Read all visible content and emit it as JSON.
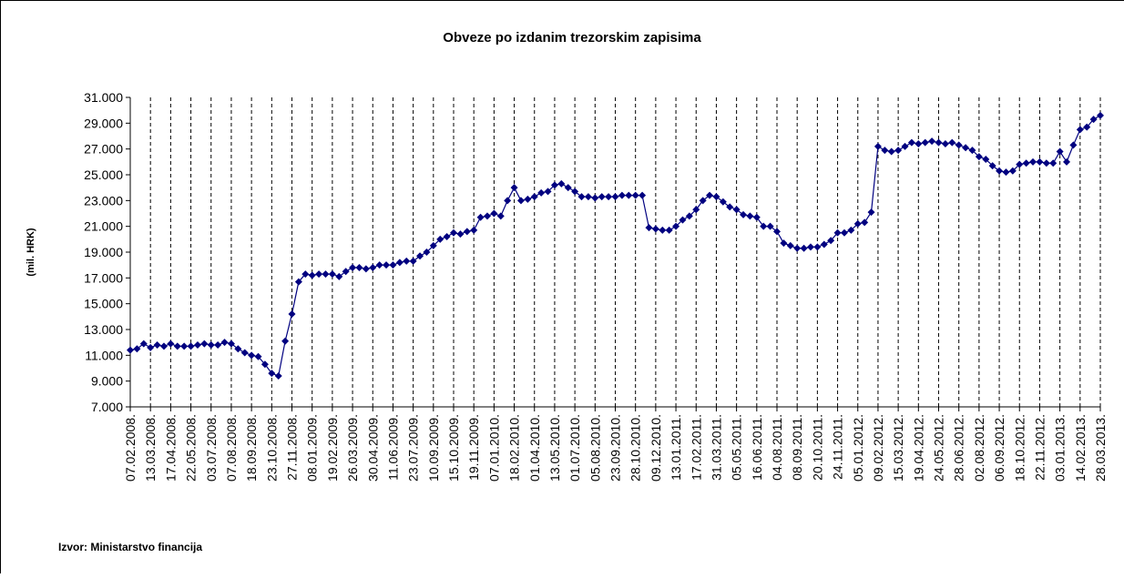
{
  "chart_data": {
    "type": "line",
    "title": "Obveze po izdanim trezorskim zapisima",
    "y_label": "(mil. HRK)",
    "source": "Izvor: Ministarstvo financija",
    "color": "#000080",
    "grid": "x-dashed",
    "categories": [
      "07.02.2008.",
      null,
      null,
      "13.03.2008.",
      null,
      null,
      "17.04.2008.",
      null,
      null,
      "22.05.2008.",
      null,
      null,
      "03.07.2008.",
      null,
      null,
      "07.08.2008.",
      null,
      null,
      "18.09.2008.",
      null,
      null,
      "23.10.2008.",
      null,
      null,
      "27.11.2008.",
      null,
      null,
      "08.01.2009.",
      null,
      null,
      "19.02.2009.",
      null,
      null,
      "26.03.2009.",
      null,
      null,
      "30.04.2009.",
      null,
      null,
      "11.06.2009.",
      null,
      null,
      "23.07.2009.",
      null,
      null,
      "10.09.2009.",
      null,
      null,
      "15.10.2009.",
      null,
      null,
      "19.11.2009.",
      null,
      null,
      "07.01.2010.",
      null,
      null,
      "18.02.2010.",
      null,
      null,
      "01.04.2010.",
      null,
      null,
      "13.05.2010.",
      null,
      null,
      "01.07.2010.",
      null,
      null,
      "05.08.2010.",
      null,
      null,
      "23.09.2010.",
      null,
      null,
      "28.10.2010.",
      null,
      null,
      "09.12.2010.",
      null,
      null,
      "13.01.2011.",
      null,
      null,
      "17.02.2011.",
      null,
      null,
      "31.03.2011.",
      null,
      null,
      "05.05.2011.",
      null,
      null,
      "16.06.2011.",
      null,
      null,
      "04.08.2011.",
      null,
      null,
      "08.09.2011.",
      null,
      null,
      "20.10.2011.",
      null,
      null,
      "24.11.2011.",
      null,
      null,
      "05.01.2012.",
      null,
      null,
      "09.02.2012.",
      null,
      null,
      "15.03.2012.",
      null,
      null,
      "19.04.2012.",
      null,
      null,
      "24.05.2012.",
      null,
      null,
      "28.06.2012.",
      null,
      null,
      "02.08.2012.",
      null,
      null,
      "06.09.2012.",
      null,
      null,
      "18.10.2012.",
      null,
      null,
      "22.11.2012.",
      null,
      null,
      "03.01.2013.",
      null,
      null,
      "14.02.2013.",
      null,
      null,
      "28.03.2013."
    ],
    "values": [
      11400,
      11500,
      11900,
      11600,
      11800,
      11700,
      11900,
      11700,
      11700,
      11700,
      11800,
      11900,
      11800,
      11800,
      12000,
      11900,
      11500,
      11200,
      11000,
      10900,
      10300,
      9600,
      9400,
      12100,
      14200,
      16700,
      17300,
      17200,
      17300,
      17300,
      17300,
      17100,
      17500,
      17800,
      17800,
      17700,
      17800,
      18000,
      18000,
      18000,
      18200,
      18300,
      18300,
      18700,
      19000,
      19500,
      20000,
      20200,
      20500,
      20400,
      20600,
      20700,
      21700,
      21800,
      22000,
      21800,
      23000,
      24000,
      23000,
      23100,
      23300,
      23600,
      23700,
      24200,
      24300,
      24000,
      23700,
      23300,
      23300,
      23200,
      23300,
      23300,
      23300,
      23400,
      23400,
      23400,
      23400,
      20900,
      20800,
      20700,
      20700,
      21000,
      21500,
      21800,
      22300,
      23000,
      23400,
      23300,
      22900,
      22500,
      22300,
      21900,
      21800,
      21700,
      21000,
      21000,
      20600,
      19700,
      19500,
      19300,
      19300,
      19400,
      19400,
      19600,
      19900,
      20500,
      20500,
      20700,
      21200,
      21300,
      22100,
      27200,
      26900,
      26800,
      26900,
      27200,
      27500,
      27400,
      27500,
      27600,
      27500,
      27400,
      27500,
      27300,
      27100,
      26900,
      26400,
      26200,
      25700,
      25300,
      25200,
      25300,
      25800,
      25900,
      26000,
      26000,
      25900,
      25900,
      26800,
      26000,
      27300,
      28500,
      28700,
      29300,
      29600
    ],
    "ylim": [
      7000,
      31000
    ],
    "yticks": [
      {
        "value": 7000,
        "label": "7.000"
      },
      {
        "value": 9000,
        "label": "9.000"
      },
      {
        "value": 11000,
        "label": "11.000"
      },
      {
        "value": 13000,
        "label": "13.000"
      },
      {
        "value": 15000,
        "label": "15.000"
      },
      {
        "value": 17000,
        "label": "17.000"
      },
      {
        "value": 19000,
        "label": "19.000"
      },
      {
        "value": 21000,
        "label": "21.000"
      },
      {
        "value": 23000,
        "label": "23.000"
      },
      {
        "value": 25000,
        "label": "25.000"
      },
      {
        "value": 27000,
        "label": "27.000"
      },
      {
        "value": 29000,
        "label": "29.000"
      },
      {
        "value": 31000,
        "label": "31.000"
      }
    ]
  }
}
